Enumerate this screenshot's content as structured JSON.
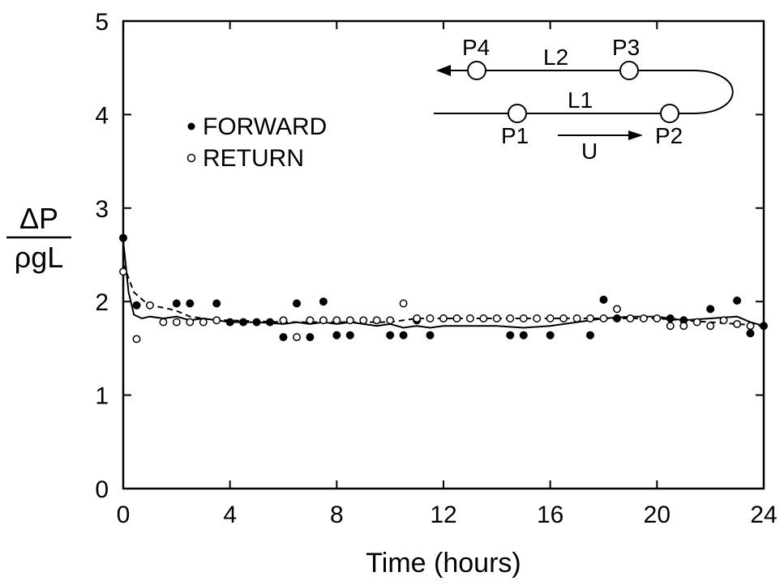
{
  "chart_data": {
    "type": "scatter",
    "xlabel": "Time (hours)",
    "ylabel": {
      "numerator": "ΔP",
      "denominator": "ρgL"
    },
    "xlim": [
      0,
      24
    ],
    "ylim": [
      0,
      5
    ],
    "xticks": [
      "0",
      "4",
      "8",
      "12",
      "16",
      "20",
      "24"
    ],
    "yticks": [
      "0",
      "1",
      "2",
      "3",
      "4",
      "5"
    ],
    "grid": false,
    "legend_position": "upper-left",
    "series": [
      {
        "name": "FORWARD",
        "marker": "filled-circle",
        "points": [
          [
            0,
            2.68
          ],
          [
            0.5,
            1.96
          ],
          [
            2,
            1.98
          ],
          [
            2.5,
            1.98
          ],
          [
            3.5,
            1.98
          ],
          [
            4,
            1.78
          ],
          [
            4.5,
            1.78
          ],
          [
            5,
            1.78
          ],
          [
            5.5,
            1.78
          ],
          [
            6,
            1.62
          ],
          [
            6.5,
            1.98
          ],
          [
            7,
            1.62
          ],
          [
            7.5,
            2.0
          ],
          [
            8,
            1.64
          ],
          [
            8.5,
            1.64
          ],
          [
            10,
            1.64
          ],
          [
            10.5,
            1.64
          ],
          [
            11,
            1.8
          ],
          [
            11.5,
            1.64
          ],
          [
            14.5,
            1.64
          ],
          [
            15,
            1.64
          ],
          [
            16,
            1.64
          ],
          [
            17.5,
            1.64
          ],
          [
            18,
            2.02
          ],
          [
            18.5,
            1.82
          ],
          [
            20.5,
            1.82
          ],
          [
            21,
            1.8
          ],
          [
            22,
            1.92
          ],
          [
            23,
            2.01
          ],
          [
            23.5,
            1.66
          ],
          [
            24,
            1.74
          ]
        ]
      },
      {
        "name": "RETURN",
        "marker": "open-circle",
        "points": [
          [
            0,
            2.32
          ],
          [
            0.5,
            1.6
          ],
          [
            1,
            1.96
          ],
          [
            1.5,
            1.78
          ],
          [
            2,
            1.78
          ],
          [
            2.5,
            1.78
          ],
          [
            3,
            1.78
          ],
          [
            3.5,
            1.8
          ],
          [
            6,
            1.8
          ],
          [
            6.5,
            1.62
          ],
          [
            7,
            1.8
          ],
          [
            7.5,
            1.8
          ],
          [
            8,
            1.8
          ],
          [
            8.5,
            1.8
          ],
          [
            9,
            1.8
          ],
          [
            9.5,
            1.8
          ],
          [
            10,
            1.8
          ],
          [
            10.5,
            1.98
          ],
          [
            11,
            1.82
          ],
          [
            11.5,
            1.82
          ],
          [
            12,
            1.82
          ],
          [
            12.5,
            1.82
          ],
          [
            13,
            1.82
          ],
          [
            13.5,
            1.82
          ],
          [
            14,
            1.82
          ],
          [
            14.5,
            1.82
          ],
          [
            15,
            1.82
          ],
          [
            15.5,
            1.82
          ],
          [
            16,
            1.82
          ],
          [
            16.5,
            1.82
          ],
          [
            17,
            1.82
          ],
          [
            17.5,
            1.82
          ],
          [
            18,
            1.82
          ],
          [
            18.5,
            1.92
          ],
          [
            19,
            1.82
          ],
          [
            19.5,
            1.82
          ],
          [
            20,
            1.82
          ],
          [
            20.5,
            1.74
          ],
          [
            21,
            1.74
          ],
          [
            21.5,
            1.78
          ],
          [
            22,
            1.74
          ],
          [
            22.5,
            1.8
          ],
          [
            23,
            1.76
          ],
          [
            23.5,
            1.74
          ]
        ]
      }
    ],
    "fit_curves": [
      {
        "style": "solid",
        "points": [
          [
            0,
            2.65
          ],
          [
            0.2,
            2.1
          ],
          [
            0.4,
            1.86
          ],
          [
            0.7,
            1.82
          ],
          [
            1,
            1.84
          ],
          [
            1.5,
            1.82
          ],
          [
            2,
            1.84
          ],
          [
            2.5,
            1.8
          ],
          [
            3,
            1.82
          ],
          [
            3.5,
            1.8
          ],
          [
            4,
            1.78
          ],
          [
            5,
            1.78
          ],
          [
            6,
            1.76
          ],
          [
            6.5,
            1.78
          ],
          [
            7,
            1.76
          ],
          [
            7.5,
            1.78
          ],
          [
            8,
            1.76
          ],
          [
            8.5,
            1.78
          ],
          [
            9,
            1.76
          ],
          [
            9.5,
            1.74
          ],
          [
            10,
            1.76
          ],
          [
            10.5,
            1.72
          ],
          [
            11,
            1.74
          ],
          [
            11.5,
            1.72
          ],
          [
            12,
            1.74
          ],
          [
            13,
            1.74
          ],
          [
            14,
            1.74
          ],
          [
            15,
            1.72
          ],
          [
            16,
            1.74
          ],
          [
            17,
            1.78
          ],
          [
            18,
            1.82
          ],
          [
            19,
            1.84
          ],
          [
            20,
            1.84
          ],
          [
            21,
            1.8
          ],
          [
            22,
            1.82
          ],
          [
            23,
            1.84
          ],
          [
            23.5,
            1.78
          ],
          [
            24,
            1.74
          ]
        ]
      },
      {
        "style": "dashed",
        "points": [
          [
            0,
            2.4
          ],
          [
            0.4,
            2.1
          ],
          [
            0.8,
            2.0
          ],
          [
            1.2,
            1.95
          ],
          [
            1.6,
            1.93
          ],
          [
            2,
            1.9
          ],
          [
            2.5,
            1.84
          ],
          [
            3,
            1.82
          ],
          [
            3.5,
            1.8
          ],
          [
            4,
            1.8
          ],
          [
            6,
            1.78
          ],
          [
            8,
            1.78
          ],
          [
            9,
            1.78
          ],
          [
            10,
            1.78
          ],
          [
            10.5,
            1.8
          ],
          [
            11,
            1.82
          ],
          [
            12,
            1.82
          ],
          [
            14,
            1.82
          ],
          [
            16,
            1.82
          ],
          [
            18,
            1.82
          ],
          [
            20,
            1.82
          ],
          [
            21,
            1.8
          ],
          [
            22,
            1.78
          ],
          [
            23,
            1.76
          ],
          [
            24,
            1.74
          ]
        ]
      }
    ],
    "diagram_labels": {
      "p1": "P1",
      "p2": "P2",
      "p3": "P3",
      "p4": "P4",
      "l1": "L1",
      "l2": "L2",
      "u": "U"
    }
  }
}
